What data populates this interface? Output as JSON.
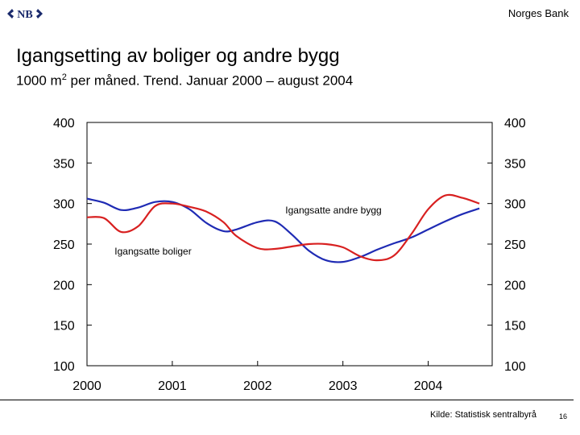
{
  "header": {
    "logo_text": "NB",
    "bank_name": "Norges Bank"
  },
  "chart_data": {
    "type": "line",
    "title": "Igangsetting av boliger og andre bygg",
    "subtitle_pre": "1000 m",
    "subtitle_sup": "2",
    "subtitle_post": " per måned. Trend. Januar 2000 – august 2004",
    "x_ticks": [
      "2000",
      "2001",
      "2002",
      "2003",
      "2004"
    ],
    "y_ticks": [
      100,
      150,
      200,
      250,
      300,
      350,
      400
    ],
    "ylim": [
      100,
      400
    ],
    "xlim": [
      2000.0,
      2004.75
    ],
    "grid": false,
    "series": [
      {
        "name": "Igangsatte boliger",
        "color": "#1f2bb4",
        "x": [
          2000.0,
          2000.2,
          2000.4,
          2000.6,
          2000.8,
          2001.0,
          2001.2,
          2001.4,
          2001.6,
          2001.75,
          2002.0,
          2002.2,
          2002.4,
          2002.6,
          2002.8,
          2003.0,
          2003.2,
          2003.4,
          2003.6,
          2003.8,
          2004.0,
          2004.2,
          2004.4,
          2004.6
        ],
        "values": [
          306,
          301,
          292,
          295,
          302,
          302,
          293,
          276,
          266,
          268,
          277,
          278,
          262,
          242,
          230,
          228,
          234,
          243,
          251,
          258,
          268,
          278,
          287,
          294
        ]
      },
      {
        "name": "Igangsatte andre bygg",
        "color": "#d82020",
        "x": [
          2000.0,
          2000.2,
          2000.4,
          2000.6,
          2000.8,
          2001.0,
          2001.2,
          2001.4,
          2001.6,
          2001.75,
          2002.0,
          2002.2,
          2002.4,
          2002.6,
          2002.8,
          2003.0,
          2003.2,
          2003.4,
          2003.6,
          2003.8,
          2004.0,
          2004.2,
          2004.4,
          2004.6
        ],
        "values": [
          283,
          282,
          265,
          272,
          297,
          300,
          296,
          290,
          277,
          260,
          245,
          244,
          247,
          250,
          250,
          246,
          235,
          230,
          236,
          262,
          293,
          310,
          307,
          300
        ]
      }
    ],
    "annotations": [
      {
        "text": "Igangsatte andre bygg",
        "series": "Igangsatte andre bygg"
      },
      {
        "text": "Igangsatte boliger",
        "series": "Igangsatte boliger"
      }
    ]
  },
  "footer": {
    "source": "Kilde: Statistisk sentralbyrå",
    "page_number": "16"
  },
  "colors": {
    "logo": "#1a2a6c",
    "axis": "#000000"
  }
}
